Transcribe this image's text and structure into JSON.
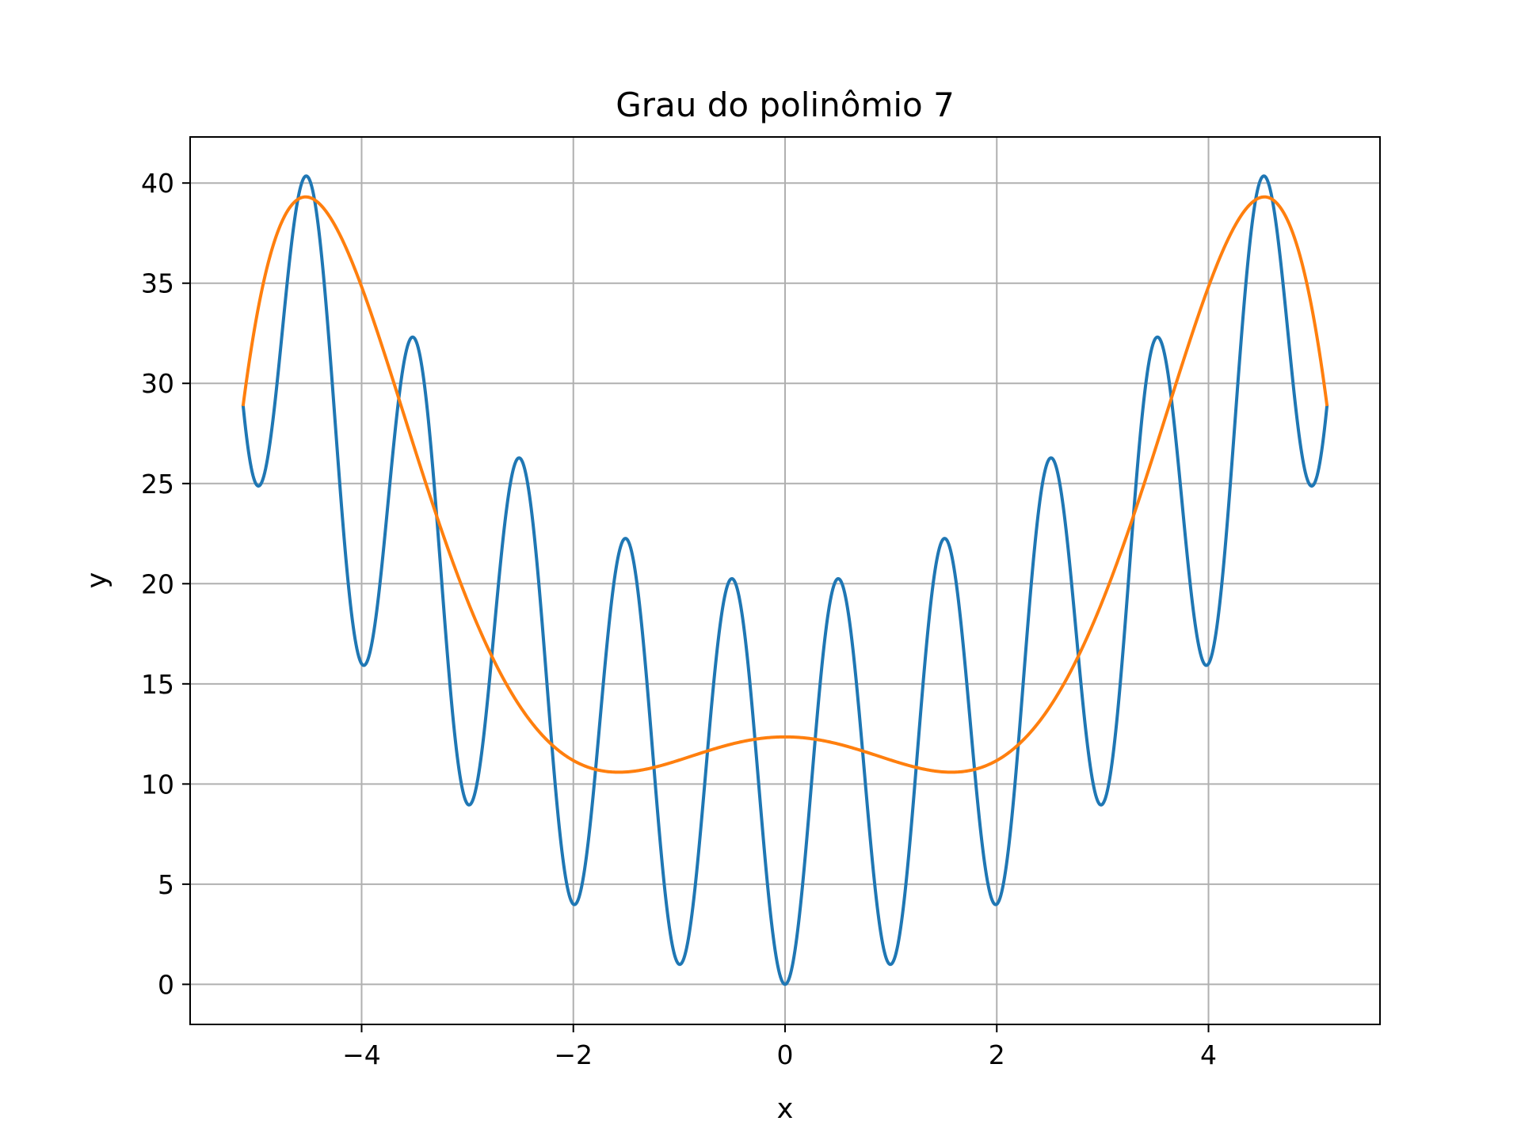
{
  "chart_data": {
    "type": "line",
    "title": "Grau do polinômio 7",
    "xlabel": "x",
    "ylabel": "y",
    "xlim": [
      -5.62,
      5.62
    ],
    "ylim": [
      -2.0,
      42.3
    ],
    "xticks": [
      -4,
      -2,
      0,
      2,
      4
    ],
    "xtick_labels": [
      "−4",
      "−2",
      "0",
      "2",
      "4"
    ],
    "yticks": [
      0,
      5,
      10,
      15,
      20,
      25,
      30,
      35,
      40
    ],
    "ytick_labels": [
      "0",
      "5",
      "10",
      "15",
      "20",
      "25",
      "30",
      "35",
      "40"
    ],
    "grid": true,
    "legend": false,
    "x_range": [
      -5.12,
      5.12
    ],
    "series": [
      {
        "function": "Rastrigin: 10 + x^2 - 10*cos(2*pi*x)",
        "color": "#1f77b4",
        "x": [
          -5.12,
          -4.97,
          -4.52,
          -3.98,
          -3.52,
          -2.99,
          -2.51,
          -1.99,
          -1.51,
          -1.0,
          -0.5,
          0.0,
          0.5,
          1.0,
          1.51,
          1.99,
          2.51,
          2.99,
          3.52,
          3.98,
          4.52,
          4.97,
          5.12
        ],
        "y": [
          28.9,
          24.9,
          40.4,
          15.9,
          32.3,
          8.9,
          26.3,
          4.0,
          22.3,
          1.0,
          20.3,
          0.0,
          20.3,
          1.0,
          22.3,
          4.0,
          26.3,
          8.9,
          32.3,
          15.9,
          40.4,
          24.9,
          28.9
        ]
      },
      {
        "function": "degree-7 polynomial fit",
        "color": "#ff7f0e",
        "x": [
          -5.12,
          -4.56,
          -4.0,
          -3.5,
          -3.0,
          -2.5,
          -2.0,
          -1.67,
          -1.0,
          -0.5,
          0.0,
          0.5,
          1.0,
          1.67,
          2.0,
          2.5,
          3.0,
          3.5,
          4.0,
          4.56,
          5.12
        ],
        "y": [
          28.9,
          39.3,
          34.5,
          27.0,
          19.5,
          13.8,
          10.9,
          10.4,
          11.2,
          12.1,
          12.6,
          12.1,
          11.2,
          10.4,
          10.9,
          13.8,
          19.5,
          27.0,
          34.5,
          39.3,
          28.9
        ]
      }
    ]
  }
}
